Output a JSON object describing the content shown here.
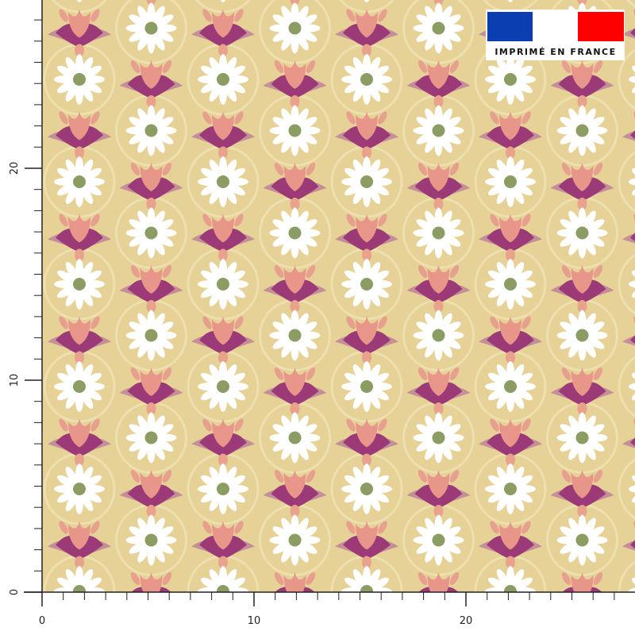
{
  "badge": {
    "text": "IMPRIMÉ EN FRANCE"
  },
  "ruler": {
    "x_labels": [
      0,
      10,
      20
    ],
    "y_labels": [
      0,
      10,
      20
    ]
  }
}
